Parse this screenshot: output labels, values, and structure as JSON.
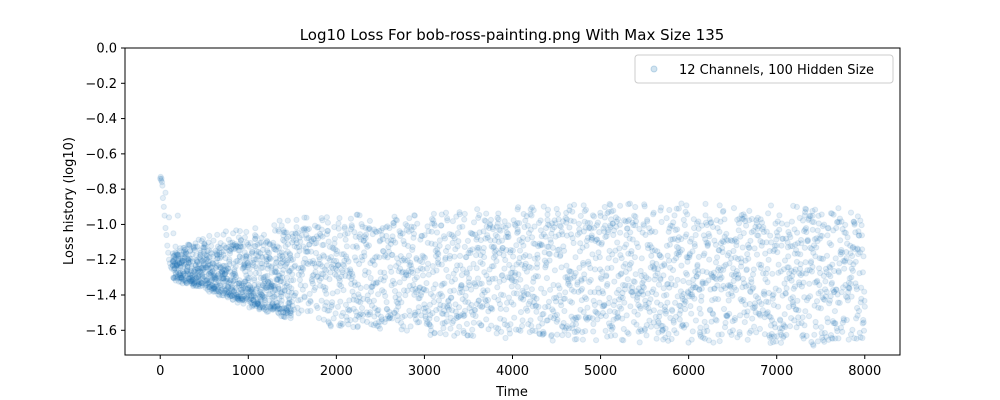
{
  "chart_data": {
    "type": "scatter",
    "title": "Log10 Loss For bob-ross-painting.png With Max Size 135",
    "xlabel": "Time",
    "ylabel": "Loss history (log10)",
    "xlim": [
      -400,
      8400
    ],
    "ylim": [
      -1.74,
      0.0
    ],
    "xticks": [
      0,
      1000,
      2000,
      3000,
      4000,
      5000,
      6000,
      7000,
      8000
    ],
    "xtick_labels": [
      "0",
      "1000",
      "2000",
      "3000",
      "4000",
      "5000",
      "6000",
      "7000",
      "8000"
    ],
    "yticks": [
      0.0,
      -0.2,
      -0.4,
      -0.6,
      -0.8,
      -1.0,
      -1.2,
      -1.4,
      -1.6
    ],
    "ytick_labels": [
      "0.0",
      "−0.2",
      "−0.4",
      "−0.6",
      "−0.8",
      "−1.0",
      "−1.2",
      "−1.4",
      "−1.6"
    ],
    "grid": false,
    "legend_position": "top-right",
    "series": [
      {
        "name": "12 Channels, 100 Hidden Size",
        "color": "#1f77b4",
        "alpha": 0.12,
        "marker": "circle",
        "x_range": [
          0,
          8000
        ],
        "points": [
          [
            0,
            -0.74
          ],
          [
            5,
            -0.73
          ],
          [
            10,
            -0.75
          ],
          [
            15,
            -0.74
          ],
          [
            20,
            -0.76
          ],
          [
            25,
            -0.78
          ],
          [
            30,
            -0.85
          ],
          [
            40,
            -0.9
          ],
          [
            50,
            -0.95
          ],
          [
            60,
            -1.02
          ],
          [
            70,
            -1.06
          ],
          [
            80,
            -1.12
          ],
          [
            90,
            -1.16
          ],
          [
            100,
            -1.2
          ],
          [
            110,
            -1.22
          ],
          [
            120,
            -1.24
          ],
          [
            130,
            -1.25
          ],
          [
            60,
            -0.82
          ],
          [
            100,
            -0.96
          ],
          [
            200,
            -0.95
          ],
          [
            150,
            -1.05
          ]
        ],
        "trend": [
          {
            "x": 100,
            "lower": -1.3,
            "upper": -1.15
          },
          {
            "x": 500,
            "lower": -1.35,
            "upper": -1.1
          },
          {
            "x": 1000,
            "lower": -1.45,
            "upper": -1.08
          },
          {
            "x": 1500,
            "lower": -1.52,
            "upper": -1.02
          },
          {
            "x": 2000,
            "lower": -1.58,
            "upper": -1.0
          },
          {
            "x": 3000,
            "lower": -1.62,
            "upper": -0.98
          },
          {
            "x": 4000,
            "lower": -1.64,
            "upper": -0.96
          },
          {
            "x": 5000,
            "lower": -1.65,
            "upper": -0.94
          },
          {
            "x": 6000,
            "lower": -1.66,
            "upper": -0.94
          },
          {
            "x": 7000,
            "lower": -1.67,
            "upper": -0.95
          },
          {
            "x": 8000,
            "lower": -1.67,
            "upper": -0.97
          }
        ]
      }
    ]
  }
}
